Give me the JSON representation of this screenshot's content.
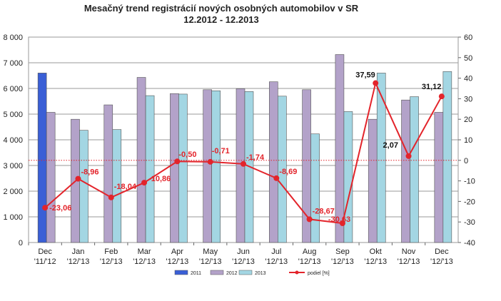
{
  "chart_data": {
    "type": "bar",
    "title": "Mesačný trend registrácií nových osobných automobilov v SR",
    "subtitle": "12.2012 - 12.2013",
    "categories": [
      [
        "Dec",
        "'11/'12"
      ],
      [
        "Jan",
        "'12/'13"
      ],
      [
        "Feb",
        "'12/'13"
      ],
      [
        "Mar",
        "'12/'13"
      ],
      [
        "Apr",
        "'12/'13"
      ],
      [
        "May",
        "'12/'13"
      ],
      [
        "Jun",
        "'12/'13"
      ],
      [
        "Jul",
        "'12/'13"
      ],
      [
        "Aug",
        "'12/'13"
      ],
      [
        "Sep",
        "'12/'13"
      ],
      [
        "Okt",
        "'12/'13"
      ],
      [
        "Nov",
        "'12/'13"
      ],
      [
        "Dec",
        "'12/'13"
      ]
    ],
    "series": [
      {
        "name": "2011",
        "axis": "left",
        "color": "#3a5fd6",
        "values": [
          6600,
          null,
          null,
          null,
          null,
          null,
          null,
          null,
          null,
          null,
          null,
          null,
          null
        ]
      },
      {
        "name": "2012",
        "axis": "left",
        "color": "#b3a2c9",
        "values": [
          5070,
          4800,
          5360,
          6430,
          5800,
          5950,
          5990,
          6260,
          5950,
          7320,
          4800,
          5550,
          5070
        ]
      },
      {
        "name": "2013",
        "axis": "left",
        "color": "#a3d6e3",
        "values": [
          null,
          4370,
          4400,
          5720,
          5780,
          5910,
          5880,
          5700,
          4230,
          5100,
          6600,
          5680,
          6660
        ]
      },
      {
        "name": "podiel [%]",
        "axis": "right",
        "type": "line",
        "color": "#e3242b",
        "values": [
          -23.06,
          -8.96,
          -18.04,
          -10.86,
          -0.5,
          -0.71,
          -1.74,
          -8.69,
          -28.67,
          -30.63,
          37.59,
          2.07,
          31.12
        ],
        "labels": [
          "-23,06",
          "-8,96",
          "-18,04",
          "-10,86",
          "-0,50",
          "-0,71",
          "-1,74",
          "-8,69",
          "-28,67",
          "-30,63",
          "37,59",
          "2,07",
          "31,12"
        ]
      }
    ],
    "y_left": {
      "min": 0,
      "max": 8000,
      "ticks": [
        "0",
        "1 000",
        "2 000",
        "3 000",
        "4 000",
        "5 000",
        "6 000",
        "7 000",
        "8 000"
      ]
    },
    "y_right": {
      "min": -40,
      "max": 60,
      "ticks": [
        "-40",
        "-30",
        "-20",
        "-10",
        "0",
        "10",
        "20",
        "30",
        "40",
        "50",
        "60"
      ]
    },
    "reference_line": {
      "axis": "right",
      "value": 0,
      "color": "#e3242b",
      "style": "dotted"
    },
    "grid": true,
    "legend_position": "bottom"
  }
}
